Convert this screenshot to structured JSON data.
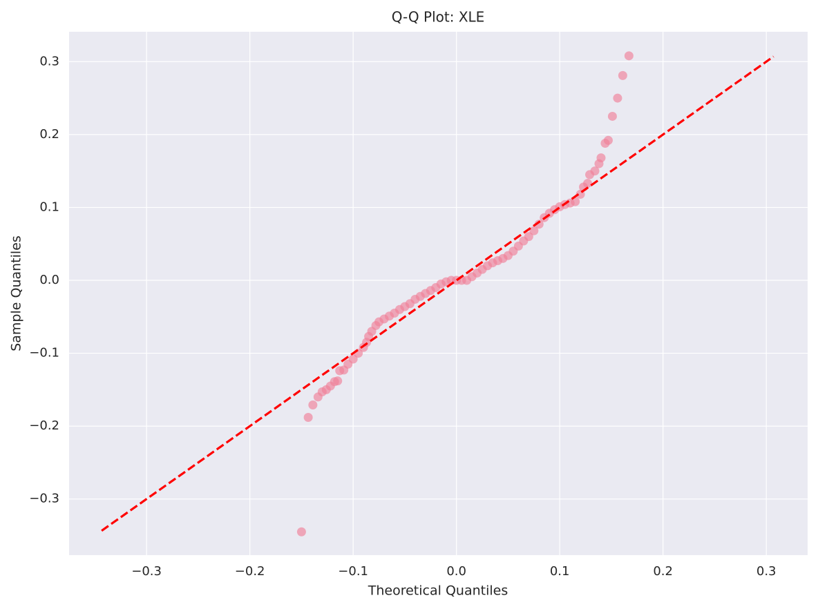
{
  "chart_data": {
    "type": "scatter",
    "title": "Q-Q Plot: XLE",
    "x_label": "Theoretical Quantiles",
    "y_label": "Sample Quantiles",
    "xlim": [
      -0.375,
      0.34
    ],
    "ylim": [
      -0.377,
      0.341
    ],
    "xticks": [
      {
        "value": -0.3,
        "label": "−0.3"
      },
      {
        "value": -0.2,
        "label": "−0.2"
      },
      {
        "value": -0.1,
        "label": "−0.1"
      },
      {
        "value": 0,
        "label": "0.0"
      },
      0.1,
      0.2,
      0.3
    ],
    "yticks": [
      {
        "value": -0.3,
        "label": "−0.3"
      },
      {
        "value": -0.2,
        "label": "−0.2"
      },
      {
        "value": -0.1,
        "label": "−0.1"
      },
      {
        "value": 0,
        "label": "0.0"
      },
      0.1,
      0.2,
      0.3
    ],
    "grid": true,
    "series": [
      {
        "type": "scatter",
        "color": "#f07f98",
        "x": [
          -0.15,
          -0.1435,
          -0.139,
          -0.134,
          -0.13,
          -0.126,
          -0.122,
          -0.118,
          -0.115,
          -0.113,
          -0.109,
          -0.105,
          -0.1,
          -0.095,
          -0.09,
          -0.087,
          -0.085,
          -0.082,
          -0.078,
          -0.075,
          -0.07,
          -0.065,
          -0.06,
          -0.055,
          -0.05,
          -0.045,
          -0.04,
          -0.035,
          -0.03,
          -0.025,
          -0.02,
          -0.015,
          -0.01,
          -0.005,
          0,
          0.005,
          0.01,
          0.015,
          0.02,
          0.025,
          0.03,
          0.035,
          0.04,
          0.045,
          0.05,
          0.055,
          0.06,
          0.065,
          0.07,
          0.075,
          0.08,
          0.085,
          0.09,
          0.095,
          0.1,
          0.105,
          0.11,
          0.115,
          0.12,
          0.123,
          0.127,
          0.129,
          0.134,
          0.138,
          0.14,
          0.144,
          0.147,
          0.151,
          0.156,
          0.161,
          0.167
        ],
        "values": [
          -0.345,
          -0.188,
          -0.171,
          -0.16,
          -0.153,
          -0.15,
          -0.145,
          -0.139,
          -0.138,
          -0.124,
          -0.123,
          -0.115,
          -0.108,
          -0.1,
          -0.092,
          -0.085,
          -0.077,
          -0.07,
          -0.062,
          -0.057,
          -0.053,
          -0.049,
          -0.045,
          -0.04,
          -0.036,
          -0.032,
          -0.026,
          -0.022,
          -0.018,
          -0.014,
          -0.01,
          -0.005,
          -0.002,
          0,
          0,
          0,
          0,
          0.005,
          0.01,
          0.015,
          0.02,
          0.024,
          0.027,
          0.03,
          0.034,
          0.04,
          0.047,
          0.054,
          0.06,
          0.068,
          0.077,
          0.086,
          0.092,
          0.097,
          0.101,
          0.104,
          0.106,
          0.108,
          0.118,
          0.128,
          0.133,
          0.145,
          0.15,
          0.16,
          0.168,
          0.188,
          0.192,
          0.225,
          0.25,
          0.281,
          0.308
        ]
      },
      {
        "type": "line",
        "color": "#ff0000",
        "dashed": true,
        "x": [
          -0.3435,
          0.307
        ],
        "values": [
          -0.3435,
          0.307
        ]
      }
    ]
  }
}
